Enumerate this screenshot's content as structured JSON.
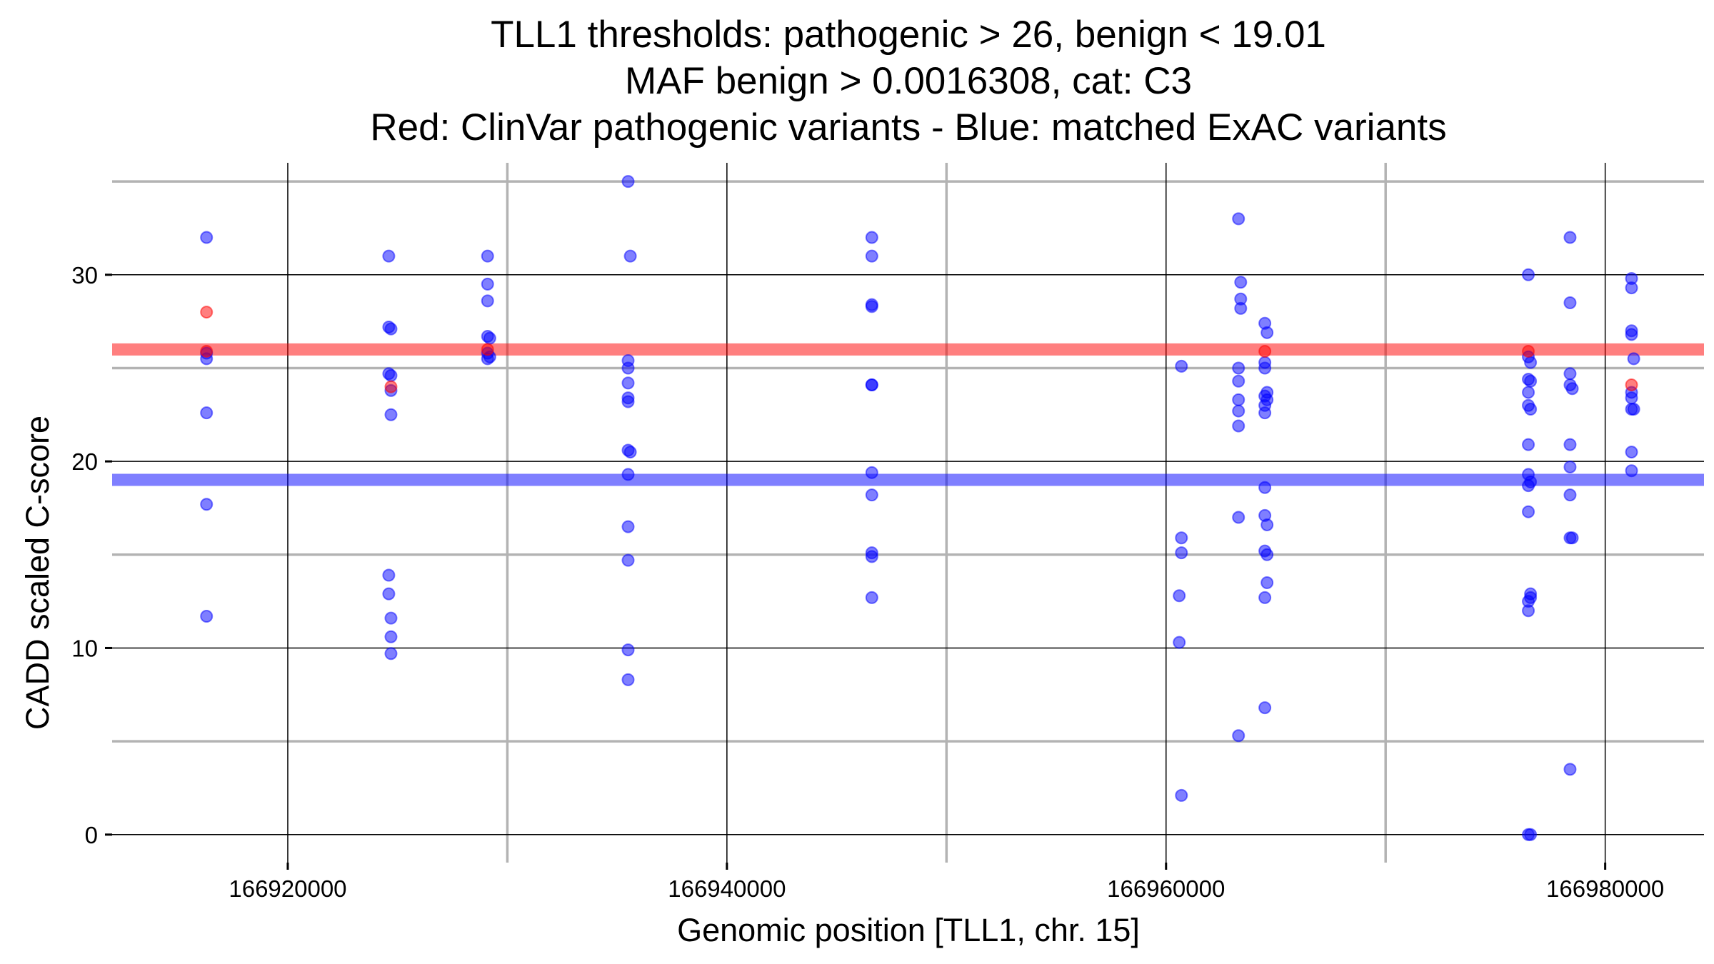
{
  "chart_data": {
    "type": "scatter",
    "title_lines": [
      "TLL1 thresholds: pathogenic > 26, benign < 19.01",
      "MAF benign > 0.0016308, cat: C3",
      "Red: ClinVar pathogenic variants - Blue: matched ExAC variants"
    ],
    "xlabel": "Genomic position [TLL1, chr. 15]",
    "ylabel": "CADD scaled C-score",
    "xlim": [
      166912000,
      166984500
    ],
    "ylim": [
      -1.5,
      36
    ],
    "x_major_ticks": [
      166920000,
      166940000,
      166960000,
      166980000
    ],
    "x_minor_ticks": [
      166930000,
      166950000,
      166970000
    ],
    "y_major_ticks": [
      0,
      10,
      20,
      30
    ],
    "y_minor_ticks": [
      5,
      15,
      25,
      35
    ],
    "tick_labels_x": [
      "166920000",
      "166940000",
      "166960000",
      "166980000"
    ],
    "tick_labels_y": [
      "0",
      "10",
      "20",
      "30"
    ],
    "grid": true,
    "thresholds": [
      {
        "value": 26,
        "color": "#ff0000"
      },
      {
        "value": 19.01,
        "color": "#0000ff"
      }
    ],
    "series": [
      {
        "color": "#0000ff",
        "points": [
          [
            166916300,
            32
          ],
          [
            166916300,
            25.8
          ],
          [
            166916300,
            25.5
          ],
          [
            166916300,
            22.6
          ],
          [
            166916300,
            17.7
          ],
          [
            166916300,
            11.7
          ],
          [
            166924600,
            31
          ],
          [
            166924600,
            27.2
          ],
          [
            166924700,
            27.1
          ],
          [
            166924600,
            24.7
          ],
          [
            166924700,
            24.6
          ],
          [
            166924700,
            23.8
          ],
          [
            166924700,
            22.5
          ],
          [
            166924600,
            13.9
          ],
          [
            166924600,
            12.9
          ],
          [
            166924700,
            11.6
          ],
          [
            166924700,
            10.6
          ],
          [
            166924700,
            9.7
          ],
          [
            166929100,
            31
          ],
          [
            166929100,
            29.5
          ],
          [
            166929100,
            28.6
          ],
          [
            166929100,
            26.7
          ],
          [
            166929200,
            26.6
          ],
          [
            166929100,
            25.8
          ],
          [
            166929100,
            25.5
          ],
          [
            166929200,
            25.6
          ],
          [
            166935500,
            35
          ],
          [
            166935600,
            31
          ],
          [
            166935500,
            25.4
          ],
          [
            166935500,
            25
          ],
          [
            166935500,
            24.2
          ],
          [
            166935500,
            23.4
          ],
          [
            166935500,
            23.2
          ],
          [
            166935500,
            20.6
          ],
          [
            166935600,
            20.5
          ],
          [
            166935500,
            19.3
          ],
          [
            166935500,
            16.5
          ],
          [
            166935500,
            14.7
          ],
          [
            166935500,
            9.9
          ],
          [
            166935500,
            8.3
          ],
          [
            166946600,
            32
          ],
          [
            166946600,
            31
          ],
          [
            166946600,
            28.4
          ],
          [
            166946600,
            28.3
          ],
          [
            166946600,
            24.1
          ],
          [
            166946600,
            24.1
          ],
          [
            166946600,
            19.4
          ],
          [
            166946600,
            18.2
          ],
          [
            166946600,
            15.1
          ],
          [
            166946600,
            14.9
          ],
          [
            166946600,
            12.7
          ],
          [
            166960700,
            25.1
          ],
          [
            166960700,
            15.9
          ],
          [
            166960700,
            15.1
          ],
          [
            166960600,
            12.8
          ],
          [
            166960600,
            10.3
          ],
          [
            166960700,
            2.1
          ],
          [
            166963300,
            33
          ],
          [
            166963400,
            29.6
          ],
          [
            166963400,
            28.7
          ],
          [
            166963400,
            28.2
          ],
          [
            166963300,
            25
          ],
          [
            166963300,
            24.3
          ],
          [
            166963300,
            23.3
          ],
          [
            166963300,
            22.7
          ],
          [
            166963300,
            21.9
          ],
          [
            166963300,
            17
          ],
          [
            166963300,
            5.3
          ],
          [
            166964500,
            27.4
          ],
          [
            166964600,
            26.9
          ],
          [
            166964500,
            25.3
          ],
          [
            166964500,
            25
          ],
          [
            166964600,
            23.7
          ],
          [
            166964500,
            23.5
          ],
          [
            166964600,
            23.3
          ],
          [
            166964500,
            23
          ],
          [
            166964500,
            22.6
          ],
          [
            166964500,
            18.6
          ],
          [
            166964500,
            17.1
          ],
          [
            166964600,
            16.6
          ],
          [
            166964500,
            15.2
          ],
          [
            166964600,
            15
          ],
          [
            166964600,
            13.5
          ],
          [
            166964500,
            12.7
          ],
          [
            166964500,
            6.8
          ],
          [
            166976500,
            30
          ],
          [
            166976500,
            25.6
          ],
          [
            166976600,
            25.3
          ],
          [
            166976500,
            24.4
          ],
          [
            166976600,
            24.3
          ],
          [
            166976500,
            23.7
          ],
          [
            166976500,
            23
          ],
          [
            166976600,
            22.8
          ],
          [
            166976500,
            20.9
          ],
          [
            166976500,
            19.3
          ],
          [
            166976600,
            18.9
          ],
          [
            166976500,
            18.7
          ],
          [
            166976500,
            17.3
          ],
          [
            166976600,
            12.9
          ],
          [
            166976600,
            12.7
          ],
          [
            166976500,
            12.5
          ],
          [
            166976500,
            12
          ],
          [
            166976500,
            0
          ],
          [
            166976600,
            0
          ],
          [
            166978400,
            32
          ],
          [
            166978400,
            28.5
          ],
          [
            166978400,
            24.7
          ],
          [
            166978400,
            24.1
          ],
          [
            166978500,
            23.9
          ],
          [
            166978400,
            20.9
          ],
          [
            166978400,
            19.7
          ],
          [
            166978400,
            18.2
          ],
          [
            166978400,
            15.9
          ],
          [
            166978500,
            15.9
          ],
          [
            166978400,
            3.5
          ],
          [
            166981200,
            29.8
          ],
          [
            166981200,
            29.3
          ],
          [
            166981200,
            27
          ],
          [
            166981200,
            26.8
          ],
          [
            166981300,
            25.5
          ],
          [
            166981200,
            23.7
          ],
          [
            166981200,
            23.4
          ],
          [
            166981300,
            22.8
          ],
          [
            166981200,
            22.8
          ],
          [
            166981200,
            20.5
          ],
          [
            166981200,
            19.5
          ]
        ]
      },
      {
        "color": "#ff0000",
        "points": [
          [
            166916300,
            28
          ],
          [
            166916300,
            25.9
          ],
          [
            166924700,
            24
          ],
          [
            166929100,
            26
          ],
          [
            166964500,
            25.9
          ],
          [
            166976500,
            25.9
          ],
          [
            166981200,
            24.1
          ]
        ]
      }
    ]
  }
}
